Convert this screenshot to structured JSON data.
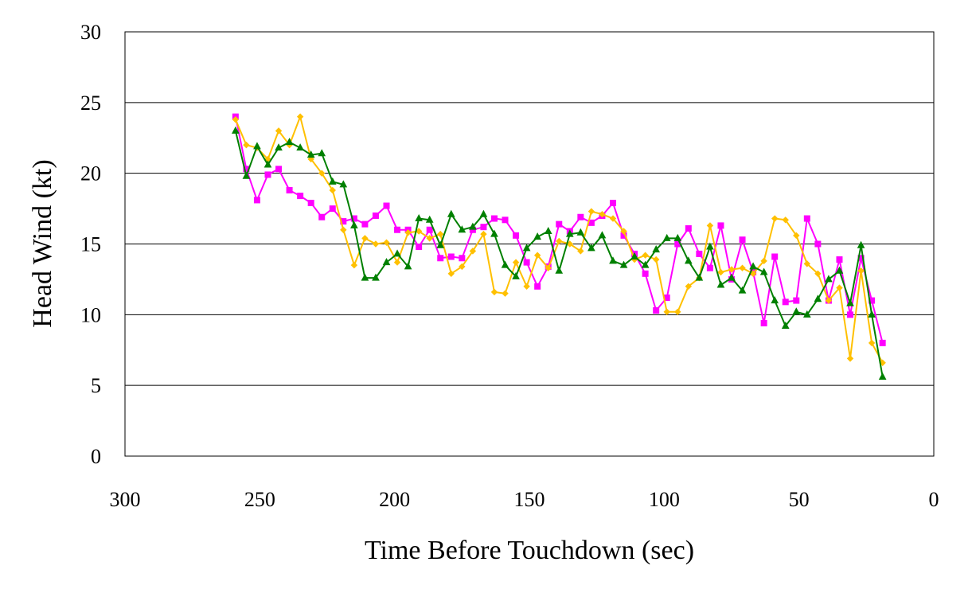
{
  "chart_data": {
    "type": "line",
    "title": "",
    "xlabel": "Time Before Touchdown (sec)",
    "ylabel": "Head Wind (kt)",
    "xlim": [
      300,
      0
    ],
    "ylim": [
      0,
      30
    ],
    "x_ticks": [
      300,
      250,
      200,
      150,
      100,
      50,
      0
    ],
    "y_ticks": [
      0,
      5,
      10,
      15,
      20,
      25,
      30
    ],
    "grid": "horizontal",
    "legend": "none",
    "series": [
      {
        "color": "#ff00ff",
        "marker": "square",
        "points": [
          [
            259,
            24
          ],
          [
            255,
            20.3
          ],
          [
            251,
            18.1
          ],
          [
            247,
            19.9
          ],
          [
            243,
            20.3
          ],
          [
            239,
            18.8
          ],
          [
            235,
            18.4
          ],
          [
            231,
            17.9
          ],
          [
            227,
            16.9
          ],
          [
            223,
            17.5
          ],
          [
            219,
            16.6
          ],
          [
            215,
            16.8
          ],
          [
            211,
            16.4
          ],
          [
            207,
            17.0
          ],
          [
            203,
            17.7
          ],
          [
            199,
            16.0
          ],
          [
            195,
            16.0
          ],
          [
            191,
            14.8
          ],
          [
            187,
            16.0
          ],
          [
            183,
            14.0
          ],
          [
            179,
            14.1
          ],
          [
            175,
            14.0
          ],
          [
            171,
            16.0
          ],
          [
            167,
            16.2
          ],
          [
            163,
            16.8
          ],
          [
            159,
            16.7
          ],
          [
            155,
            15.6
          ],
          [
            151,
            13.7
          ],
          [
            147,
            12.0
          ],
          [
            143,
            13.4
          ],
          [
            139,
            16.4
          ],
          [
            135,
            15.9
          ],
          [
            131,
            16.9
          ],
          [
            127,
            16.5
          ],
          [
            123,
            17.0
          ],
          [
            119,
            17.9
          ],
          [
            115,
            15.6
          ],
          [
            111,
            14.3
          ],
          [
            107,
            12.9
          ],
          [
            103,
            10.3
          ],
          [
            99,
            11.2
          ],
          [
            95,
            15.0
          ],
          [
            91,
            16.1
          ],
          [
            87,
            14.3
          ],
          [
            83,
            13.3
          ],
          [
            79,
            16.3
          ],
          [
            75,
            12.5
          ],
          [
            71,
            15.3
          ],
          [
            67,
            13.0
          ],
          [
            63,
            9.4
          ],
          [
            59,
            14.1
          ],
          [
            55,
            10.9
          ],
          [
            51,
            11.0
          ],
          [
            47,
            16.8
          ],
          [
            43,
            15.0
          ],
          [
            39,
            11.0
          ],
          [
            35,
            13.9
          ],
          [
            31,
            10.0
          ],
          [
            27,
            14.0
          ],
          [
            23,
            11.0
          ],
          [
            19,
            8.0
          ]
        ]
      },
      {
        "color": "#ffc000",
        "marker": "diamond",
        "points": [
          [
            259,
            23.8
          ],
          [
            255,
            22.0
          ],
          [
            251,
            21.8
          ],
          [
            247,
            21.0
          ],
          [
            243,
            23.0
          ],
          [
            239,
            22.0
          ],
          [
            235,
            24.0
          ],
          [
            231,
            21.0
          ],
          [
            227,
            20.0
          ],
          [
            223,
            18.8
          ],
          [
            219,
            16.0
          ],
          [
            215,
            13.5
          ],
          [
            211,
            15.4
          ],
          [
            207,
            15.0
          ],
          [
            203,
            15.1
          ],
          [
            199,
            13.7
          ],
          [
            195,
            15.8
          ],
          [
            191,
            15.9
          ],
          [
            187,
            15.4
          ],
          [
            183,
            15.7
          ],
          [
            179,
            12.9
          ],
          [
            175,
            13.4
          ],
          [
            171,
            14.5
          ],
          [
            167,
            15.7
          ],
          [
            163,
            11.6
          ],
          [
            159,
            11.5
          ],
          [
            155,
            13.7
          ],
          [
            151,
            12.0
          ],
          [
            147,
            14.2
          ],
          [
            143,
            13.3
          ],
          [
            139,
            15.2
          ],
          [
            135,
            15.0
          ],
          [
            131,
            14.5
          ],
          [
            127,
            17.3
          ],
          [
            123,
            17.1
          ],
          [
            119,
            16.8
          ],
          [
            115,
            15.9
          ],
          [
            111,
            13.9
          ],
          [
            107,
            14.2
          ],
          [
            103,
            13.9
          ],
          [
            99,
            10.2
          ],
          [
            95,
            10.2
          ],
          [
            91,
            12.0
          ],
          [
            87,
            12.6
          ],
          [
            83,
            16.3
          ],
          [
            79,
            13.0
          ],
          [
            75,
            13.2
          ],
          [
            71,
            13.3
          ],
          [
            67,
            12.9
          ],
          [
            63,
            13.8
          ],
          [
            59,
            16.8
          ],
          [
            55,
            16.7
          ],
          [
            51,
            15.6
          ],
          [
            47,
            13.6
          ],
          [
            43,
            12.9
          ],
          [
            39,
            11.0
          ],
          [
            35,
            11.9
          ],
          [
            31,
            6.9
          ],
          [
            27,
            13.1
          ],
          [
            23,
            8.0
          ],
          [
            19,
            6.6
          ]
        ]
      },
      {
        "color": "#008000",
        "marker": "triangle",
        "points": [
          [
            259,
            23.0
          ],
          [
            255,
            19.8
          ],
          [
            251,
            21.9
          ],
          [
            247,
            20.6
          ],
          [
            243,
            21.8
          ],
          [
            239,
            22.2
          ],
          [
            235,
            21.8
          ],
          [
            231,
            21.3
          ],
          [
            227,
            21.4
          ],
          [
            223,
            19.4
          ],
          [
            219,
            19.2
          ],
          [
            215,
            16.3
          ],
          [
            211,
            12.6
          ],
          [
            207,
            12.6
          ],
          [
            203,
            13.7
          ],
          [
            199,
            14.3
          ],
          [
            195,
            13.4
          ],
          [
            191,
            16.8
          ],
          [
            187,
            16.7
          ],
          [
            183,
            14.9
          ],
          [
            179,
            17.1
          ],
          [
            175,
            16.0
          ],
          [
            171,
            16.2
          ],
          [
            167,
            17.1
          ],
          [
            163,
            15.7
          ],
          [
            159,
            13.5
          ],
          [
            155,
            12.7
          ],
          [
            151,
            14.7
          ],
          [
            147,
            15.5
          ],
          [
            143,
            15.9
          ],
          [
            139,
            13.1
          ],
          [
            135,
            15.7
          ],
          [
            131,
            15.8
          ],
          [
            127,
            14.7
          ],
          [
            123,
            15.6
          ],
          [
            119,
            13.8
          ],
          [
            115,
            13.5
          ],
          [
            111,
            14.1
          ],
          [
            107,
            13.5
          ],
          [
            103,
            14.6
          ],
          [
            99,
            15.4
          ],
          [
            95,
            15.4
          ],
          [
            91,
            13.8
          ],
          [
            87,
            12.6
          ],
          [
            83,
            14.8
          ],
          [
            79,
            12.1
          ],
          [
            75,
            12.6
          ],
          [
            71,
            11.7
          ],
          [
            67,
            13.4
          ],
          [
            63,
            13.0
          ],
          [
            59,
            11.0
          ],
          [
            55,
            9.2
          ],
          [
            51,
            10.2
          ],
          [
            47,
            10.0
          ],
          [
            43,
            11.1
          ],
          [
            39,
            12.5
          ],
          [
            35,
            13.1
          ],
          [
            31,
            10.8
          ],
          [
            27,
            14.9
          ],
          [
            23,
            10.0
          ],
          [
            19,
            5.6
          ]
        ]
      }
    ]
  }
}
